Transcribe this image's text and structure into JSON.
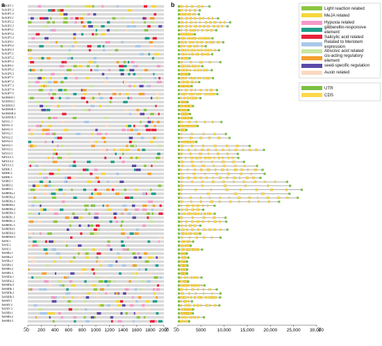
{
  "panel_a": {
    "label": "a",
    "axis_ticks": [
      "0",
      "200",
      "400",
      "600",
      "800",
      "1000",
      "1200",
      "1400",
      "1600",
      "1800",
      "2000"
    ],
    "axis_max": 2000,
    "start_marker": "5'",
    "end_marker": "3'"
  },
  "panel_b": {
    "label": "b",
    "axis_ticks": [
      "0",
      "5000",
      "10,000",
      "15,000",
      "20,000",
      "25,000",
      "30,000"
    ],
    "axis_max": 30000,
    "start_marker": "5'",
    "end_marker": "3'"
  },
  "genes": [
    "TaAGP1.1",
    "TaAGP1.2",
    "TaAGP1.3",
    "TaAGP2.1",
    "TaAGP2.2",
    "TaAGP2.3",
    "TaAGP3.1",
    "TaAGP3.2",
    "TaAGP3.3",
    "TaAGP4.1",
    "TaAGP4.2",
    "TaAGP4.3",
    "TaAGP5.1",
    "TaAGP5.2",
    "TaAGP5.3",
    "TaAGP6.1",
    "TaAGP6.2",
    "TaAGP6.3",
    "TaAGP7.1",
    "TaAGP7.2",
    "TaAGP7.3",
    "TaAGP7.4",
    "TaAGP7.5",
    "TaGBSSI.1",
    "TaGBSSI.2",
    "TaGBSSI.3",
    "TaGBSSII.1",
    "TaGBSSII.2",
    "TaGBSSII.3",
    "TaISA1.1",
    "TaISA1.2",
    "TaISA1.3",
    "TaISA2.1",
    "TaISA2.2",
    "TaISA2.3",
    "TaISA3.1",
    "TaISA3.2",
    "TaISA3.3",
    "TaPUL3.1",
    "TaPUL3.2",
    "TaPUL3.3",
    "TaDBE.1",
    "TaDBE.2",
    "TaDBE.3",
    "TaSBEI.1",
    "TaSBEI.2",
    "TaSBEI.3",
    "TaSBEIIa.1",
    "TaSBEIIa.2",
    "TaSBEIIa.3",
    "TaSBEIIb.1",
    "TaSBEIIb.2",
    "TaSBEIIb.3",
    "TaSBEIIc.1",
    "TaSBEIIc.2",
    "TaSBEIIc.3",
    "TaSBEIId.1",
    "TaSBEIId.2",
    "TaSBEIId.3",
    "TaSSI.1",
    "TaSSI.2",
    "TaSSI.3",
    "TaSSIIa.1",
    "TaSSIIa.2",
    "TaSSIIa.3",
    "TaSSIIb.1",
    "TaSSIIb.2",
    "TaSSIIb.3",
    "TaSSIIIa.1",
    "TaSSIIIa.2",
    "TaSSIIIa.3",
    "TaSSIIIb.1",
    "TaSSIIIb.2",
    "TaSSIIIb.3",
    "TaSSIV.1",
    "TaSSIV.2",
    "TaSSIV.3",
    "TaSSIIb.1",
    "TaSSIIb.2",
    "TaSSIIb.3"
  ],
  "legend_elements": [
    {
      "label": "Light reaction related",
      "color": "#8cc63f"
    },
    {
      "label": "MeJA related",
      "color": "#f5d63d"
    },
    {
      "label": "Hypoxia related",
      "color": "#f598c8"
    },
    {
      "label": "gibberellin-responsive element",
      "color": "#1e9e8a"
    },
    {
      "label": "Salicylic acid related",
      "color": "#e8203a"
    },
    {
      "label": "Related to Meristem expression",
      "color": "#a8c8e8"
    },
    {
      "label": "Abscisic acid related",
      "color": "#c8e6a0"
    },
    {
      "label": "cis-acting regulatory element",
      "color": "#f5a030"
    },
    {
      "label": "seed-specific regulation",
      "color": "#5a4aa8"
    },
    {
      "label": "Auxin related",
      "color": "#fcd8c0"
    }
  ],
  "legend_structure": [
    {
      "label": "UTR",
      "color": "#7cc043"
    },
    {
      "label": "CDS",
      "color": "#fcd84a"
    }
  ]
}
